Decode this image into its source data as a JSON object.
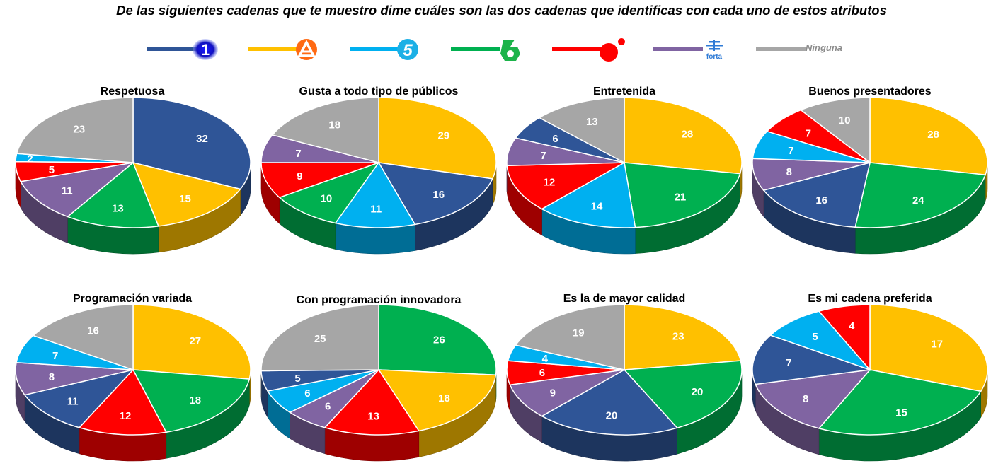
{
  "title": "De las siguientes cadenas que te muestro dime cuáles son las dos cadenas que identificas con cada uno de estos atributos",
  "legend": [
    {
      "key": "la1",
      "color": "#2f5597",
      "icon": "la1-logo-icon",
      "text": ""
    },
    {
      "key": "a3",
      "color": "#ffc000",
      "icon": "antena3-logo-icon",
      "text": ""
    },
    {
      "key": "t5",
      "color": "#00b0f0",
      "icon": "telecinco-logo-icon",
      "text": ""
    },
    {
      "key": "la6",
      "color": "#00b050",
      "icon": "lasexta-logo-icon",
      "text": ""
    },
    {
      "key": "cuatro",
      "color": "#ff0000",
      "icon": "cuatro-logo-icon",
      "text": ""
    },
    {
      "key": "forta",
      "color": "#8064a2",
      "icon": "forta-logo-icon",
      "text": "forta"
    },
    {
      "key": "ninguna",
      "color": "#a6a6a6",
      "icon": "",
      "text": "Ninguna"
    }
  ],
  "colors": {
    "la1": "#2f5597",
    "a3": "#ffc000",
    "t5": "#00b0f0",
    "la6": "#00b050",
    "cuatro": "#ff0000",
    "forta": "#8064a2",
    "ninguna": "#a6a6a6"
  },
  "chart_data": [
    {
      "type": "pie",
      "title": "Respetuosa",
      "slices": [
        {
          "series": "la1",
          "value": 32
        },
        {
          "series": "a3",
          "value": 15
        },
        {
          "series": "la6",
          "value": 13
        },
        {
          "series": "forta",
          "value": 11
        },
        {
          "series": "cuatro",
          "value": 5
        },
        {
          "series": "t5",
          "value": 2
        },
        {
          "series": "ninguna",
          "value": 23
        }
      ]
    },
    {
      "type": "pie",
      "title": "Gusta a todo tipo de públicos",
      "slices": [
        {
          "series": "a3",
          "value": 29
        },
        {
          "series": "la1",
          "value": 16
        },
        {
          "series": "t5",
          "value": 11
        },
        {
          "series": "la6",
          "value": 10
        },
        {
          "series": "cuatro",
          "value": 9
        },
        {
          "series": "forta",
          "value": 7
        },
        {
          "series": "ninguna",
          "value": 18
        }
      ]
    },
    {
      "type": "pie",
      "title": "Entretenida",
      "slices": [
        {
          "series": "a3",
          "value": 28
        },
        {
          "series": "la6",
          "value": 21
        },
        {
          "series": "t5",
          "value": 14
        },
        {
          "series": "cuatro",
          "value": 12
        },
        {
          "series": "forta",
          "value": 7
        },
        {
          "series": "la1",
          "value": 6
        },
        {
          "series": "ninguna",
          "value": 13
        }
      ]
    },
    {
      "type": "pie",
      "title": "Buenos presentadores",
      "slices": [
        {
          "series": "a3",
          "value": 28
        },
        {
          "series": "la6",
          "value": 24
        },
        {
          "series": "la1",
          "value": 16
        },
        {
          "series": "forta",
          "value": 8
        },
        {
          "series": "t5",
          "value": 7
        },
        {
          "series": "cuatro",
          "value": 7
        },
        {
          "series": "ninguna",
          "value": 10
        }
      ]
    },
    {
      "type": "pie",
      "title": "Programación  variada",
      "slices": [
        {
          "series": "a3",
          "value": 27
        },
        {
          "series": "la6",
          "value": 18
        },
        {
          "series": "cuatro",
          "value": 12
        },
        {
          "series": "la1",
          "value": 11
        },
        {
          "series": "forta",
          "value": 8
        },
        {
          "series": "t5",
          "value": 7
        },
        {
          "series": "ninguna",
          "value": 16
        }
      ]
    },
    {
      "type": "pie",
      "title": "Con programación  innovadora",
      "slices": [
        {
          "series": "la6",
          "value": 26
        },
        {
          "series": "a3",
          "value": 18
        },
        {
          "series": "cuatro",
          "value": 13
        },
        {
          "series": "forta",
          "value": 6
        },
        {
          "series": "t5",
          "value": 6
        },
        {
          "series": "la1",
          "value": 5
        },
        {
          "series": "ninguna",
          "value": 25
        }
      ]
    },
    {
      "type": "pie",
      "title": "Es la de mayor calidad",
      "slices": [
        {
          "series": "a3",
          "value": 23
        },
        {
          "series": "la6",
          "value": 20
        },
        {
          "series": "la1",
          "value": 20
        },
        {
          "series": "forta",
          "value": 9
        },
        {
          "series": "cuatro",
          "value": 6
        },
        {
          "series": "t5",
          "value": 4
        },
        {
          "series": "ninguna",
          "value": 19
        }
      ]
    },
    {
      "type": "pie",
      "title": "Es mi cadena preferida",
      "slices": [
        {
          "series": "a3",
          "value": 17
        },
        {
          "series": "la6",
          "value": 15
        },
        {
          "series": "forta",
          "value": 8
        },
        {
          "series": "la1",
          "value": 7
        },
        {
          "series": "t5",
          "value": 5
        },
        {
          "series": "cuatro",
          "value": 4
        }
      ]
    }
  ]
}
